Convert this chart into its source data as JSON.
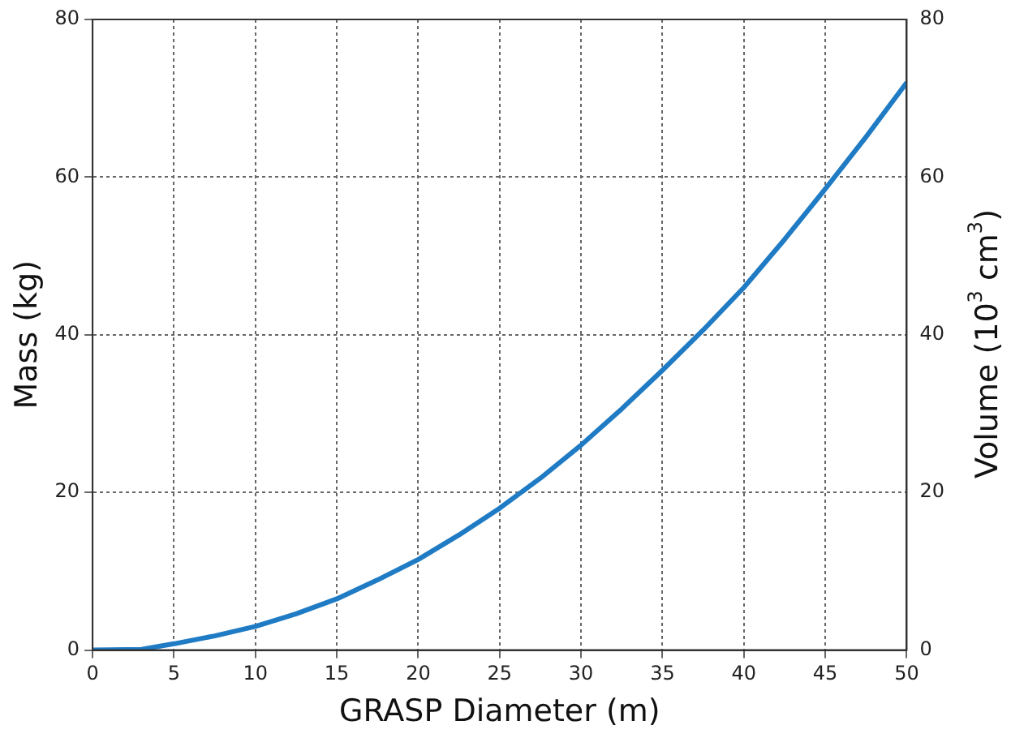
{
  "chart_data": {
    "type": "line",
    "xlabel": "GRASP Diameter (m)",
    "ylabel": "Mass (kg)",
    "y2label": "Volume (10$^{3}$ cm$^{3}$)",
    "x": [
      0,
      3,
      5,
      7.5,
      10,
      12.5,
      15,
      17.5,
      20,
      22.5,
      25,
      27.5,
      30,
      32.5,
      35,
      37.5,
      40,
      42.5,
      45,
      47.5,
      50
    ],
    "series": [
      {
        "color": "#1f7bc4",
        "values": [
          0,
          0.1,
          0.8,
          1.8,
          3,
          4.6,
          6.5,
          8.9,
          11.5,
          14.6,
          18,
          21.8,
          26,
          30.6,
          35.5,
          40.6,
          46,
          52.1,
          58.5,
          65.1,
          72
        ]
      }
    ],
    "xlim": [
      0,
      50
    ],
    "xticks": [
      0,
      5,
      10,
      15,
      20,
      25,
      30,
      35,
      40,
      45,
      50
    ],
    "ylim": [
      0,
      80
    ],
    "yticks": [
      0,
      20,
      40,
      60,
      80
    ],
    "y2lim": [
      0,
      80
    ],
    "y2ticks": [
      0,
      20,
      40,
      60,
      80
    ],
    "grid": true,
    "legend": false,
    "marker": "none",
    "line_style": "solid"
  }
}
